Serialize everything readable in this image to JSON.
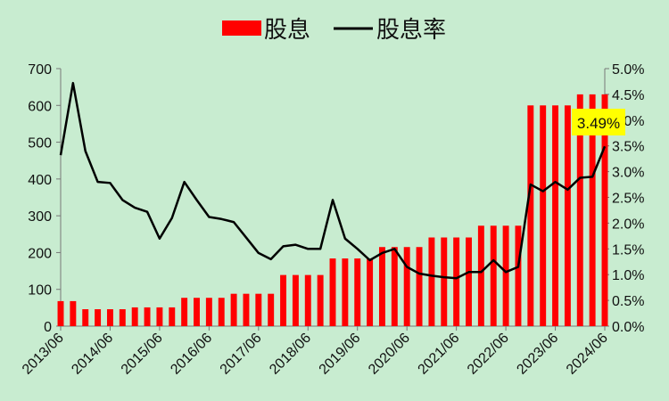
{
  "chart_data": {
    "type": "bar+line",
    "title": "",
    "legend": {
      "position": "top-center",
      "entries": [
        "股息",
        "股息率"
      ]
    },
    "colors": {
      "bar": "#ff0000",
      "line": "#000000",
      "background": "#c8ecd0",
      "annotation_bg": "#ffff00"
    },
    "x_tick_labels": [
      "2013/06",
      "2014/06",
      "2015/06",
      "2016/06",
      "2017/06",
      "2018/06",
      "2019/06",
      "2020/06",
      "2021/06",
      "2022/06",
      "2023/06",
      "2024/06"
    ],
    "x_quarters": [
      "2013/06",
      "2013/09",
      "2013/12",
      "2014/03",
      "2014/06",
      "2014/09",
      "2014/12",
      "2015/03",
      "2015/06",
      "2015/09",
      "2015/12",
      "2016/03",
      "2016/06",
      "2016/09",
      "2016/12",
      "2017/03",
      "2017/06",
      "2017/09",
      "2017/12",
      "2018/03",
      "2018/06",
      "2018/09",
      "2018/12",
      "2019/03",
      "2019/06",
      "2019/09",
      "2019/12",
      "2020/03",
      "2020/06",
      "2020/09",
      "2020/12",
      "2021/03",
      "2021/06",
      "2021/09",
      "2021/12",
      "2022/03",
      "2022/06",
      "2022/09",
      "2022/12",
      "2023/03",
      "2023/06",
      "2023/09",
      "2023/12",
      "2024/03",
      "2024/06"
    ],
    "y_left": {
      "min": 0,
      "max": 700,
      "ticks": [
        "0",
        "100",
        "200",
        "300",
        "400",
        "500",
        "600",
        "700"
      ]
    },
    "y_right": {
      "min": 0,
      "max": 5.0,
      "ticks": [
        "0.0%",
        "0.5%",
        "1.0%",
        "1.5%",
        "2.0%",
        "2.5%",
        "3.0%",
        "3.5%",
        "4.0%",
        "4.5%",
        "5.0%"
      ]
    },
    "series": [
      {
        "name": "股息",
        "type": "bar",
        "axis": "left",
        "values": [
          68,
          68,
          46,
          46,
          46,
          46,
          51,
          51,
          51,
          51,
          77,
          77,
          77,
          77,
          88,
          88,
          88,
          88,
          139,
          139,
          139,
          139,
          184,
          184,
          184,
          184,
          215,
          215,
          215,
          215,
          241,
          241,
          241,
          241,
          273,
          273,
          273,
          273,
          600,
          600,
          600,
          600,
          630,
          630,
          630
        ]
      },
      {
        "name": "股息率",
        "type": "line",
        "axis": "right",
        "values": [
          3.32,
          4.72,
          3.4,
          2.8,
          2.78,
          2.45,
          2.3,
          2.22,
          1.7,
          2.1,
          2.8,
          2.45,
          2.12,
          2.08,
          2.02,
          1.72,
          1.42,
          1.3,
          1.55,
          1.58,
          1.5,
          1.5,
          2.45,
          1.7,
          1.5,
          1.28,
          1.42,
          1.5,
          1.15,
          1.02,
          0.98,
          0.95,
          0.93,
          1.05,
          1.05,
          1.28,
          1.05,
          1.15,
          2.75,
          2.62,
          2.8,
          2.65,
          2.88,
          2.9,
          3.49
        ]
      }
    ],
    "annotation": {
      "text": "3.49%"
    }
  }
}
